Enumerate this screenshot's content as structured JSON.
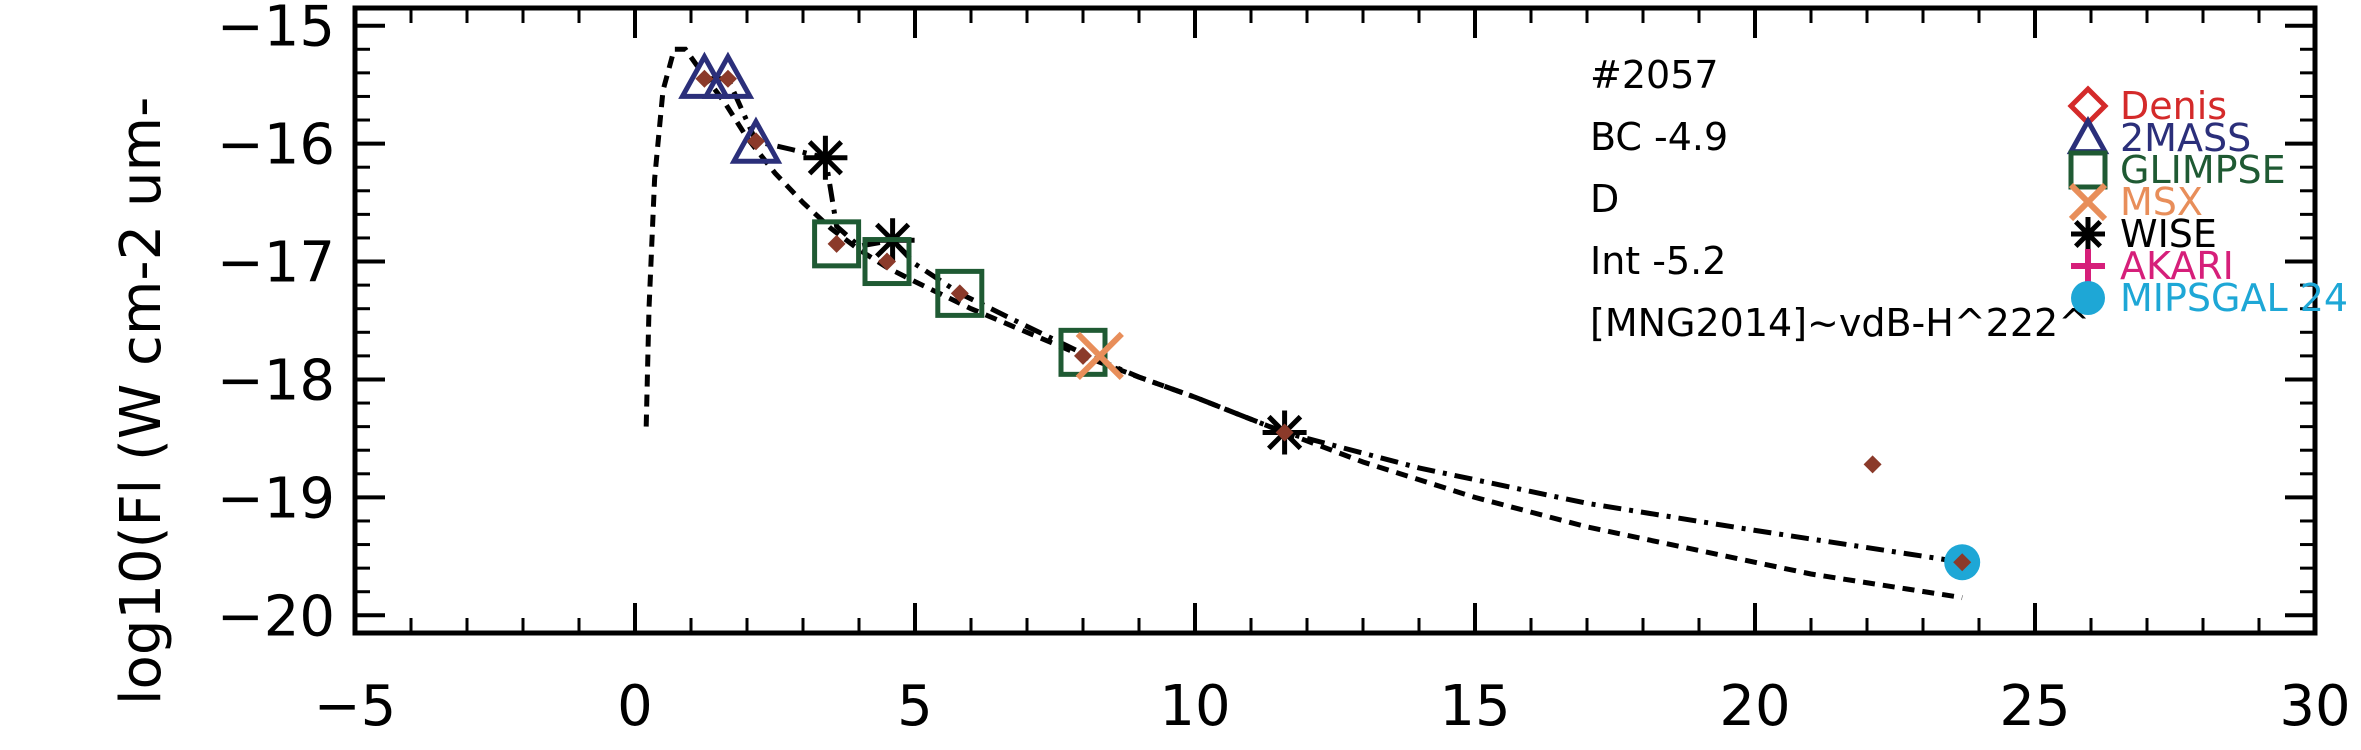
{
  "chart_data": {
    "type": "scatter",
    "ylabel": "log10(Fl (W cm-2 um-",
    "xlabel": "",
    "xlim": [
      -5,
      30
    ],
    "ylim": [
      -20.15,
      -14.85
    ],
    "x_ticks": [
      -5,
      0,
      5,
      10,
      15,
      20,
      25,
      30
    ],
    "x_tick_labels": [
      "−5",
      "0",
      "5",
      "10",
      "15",
      "20",
      "25",
      "30"
    ],
    "y_ticks": [
      -20,
      -19,
      -18,
      -17,
      -16,
      -15
    ],
    "y_tick_labels": [
      "−20",
      "−19",
      "−18",
      "−17",
      "−16",
      "−15"
    ],
    "annotations": [
      "#2057",
      "BC -4.9",
      "D",
      "Int -5.2",
      "[MNG2014]~vdB-H^222^"
    ],
    "legend": {
      "position": "top-right",
      "entries": [
        {
          "name": "Denis",
          "marker": "diamond-open",
          "color": "#d42a2a"
        },
        {
          "name": "2MASS",
          "marker": "triangle-open",
          "color": "#2b2f7a"
        },
        {
          "name": "GLIMPSE",
          "marker": "square-open",
          "color": "#1f5a33"
        },
        {
          "name": "MSX",
          "marker": "x",
          "color": "#e88e5a"
        },
        {
          "name": "WISE",
          "marker": "asterisk",
          "color": "#000000"
        },
        {
          "name": "AKARI",
          "marker": "plus",
          "color": "#d61f7a"
        },
        {
          "name": "MIPSGAL 24",
          "marker": "circle-filled",
          "color": "#1ea7d6"
        }
      ]
    },
    "series": [
      {
        "marker": "triangle-open",
        "color": "#2b2f7a",
        "x": [
          1.24,
          1.66,
          2.16
        ],
        "y": [
          -15.45,
          -15.45,
          -16.0
        ]
      },
      {
        "marker": "asterisk",
        "color": "#000000",
        "x": [
          3.4,
          4.6,
          11.6
        ],
        "y": [
          -16.12,
          -16.82,
          -18.45
        ]
      },
      {
        "marker": "square-open",
        "color": "#1f5a33",
        "x": [
          3.6,
          4.5,
          5.8,
          8.0
        ],
        "y": [
          -16.85,
          -17.0,
          -17.27,
          -17.77
        ]
      },
      {
        "marker": "x",
        "color": "#e88e5a",
        "x": [
          8.3
        ],
        "y": [
          -17.8
        ]
      },
      {
        "marker": "circle-filled",
        "color": "#1ea7d6",
        "x": [
          23.7
        ],
        "y": [
          -19.55
        ]
      },
      {
        "marker": "diamond-small",
        "color": "#8b3a2a",
        "x": [
          1.24,
          1.66,
          2.16,
          3.6,
          4.5,
          5.8,
          8.0,
          11.6,
          22.1,
          23.7
        ],
        "y": [
          -15.45,
          -15.45,
          -15.98,
          -16.85,
          -17.0,
          -17.27,
          -17.8,
          -18.45,
          -18.72,
          -19.55
        ]
      }
    ],
    "lines": [
      {
        "style": "dotted-dash",
        "color": "#000000",
        "x": [
          0.2,
          0.25,
          0.35,
          0.5,
          0.7,
          0.9,
          1.2,
          1.6,
          2.0,
          2.5,
          3.0,
          3.5,
          4.0,
          4.5,
          5.0,
          6.0,
          7.0,
          8.0,
          9.0,
          10.0,
          11.6,
          13.0,
          15.0,
          17.0,
          19.0,
          21.0,
          23.7
        ],
        "y": [
          -18.4,
          -17.4,
          -16.3,
          -15.55,
          -15.2,
          -15.2,
          -15.4,
          -15.65,
          -15.95,
          -16.25,
          -16.5,
          -16.72,
          -16.9,
          -17.05,
          -17.17,
          -17.4,
          -17.6,
          -17.8,
          -17.98,
          -18.15,
          -18.45,
          -18.7,
          -19.0,
          -19.25,
          -19.45,
          -19.65,
          -19.85
        ]
      },
      {
        "style": "dash-dot",
        "color": "#000000",
        "x": [
          1.24,
          1.66,
          2.16,
          2.8,
          3.4,
          3.6,
          4.0,
          4.6,
          5.0,
          5.8,
          7.0,
          8.0,
          9.0,
          10.0,
          11.6,
          14.0,
          17.0,
          20.0,
          23.7
        ],
        "y": [
          -15.45,
          -15.45,
          -15.98,
          -16.05,
          -16.12,
          -16.7,
          -16.87,
          -16.82,
          -17.02,
          -17.27,
          -17.55,
          -17.78,
          -17.98,
          -18.15,
          -18.45,
          -18.75,
          -19.05,
          -19.28,
          -19.55
        ]
      }
    ]
  }
}
